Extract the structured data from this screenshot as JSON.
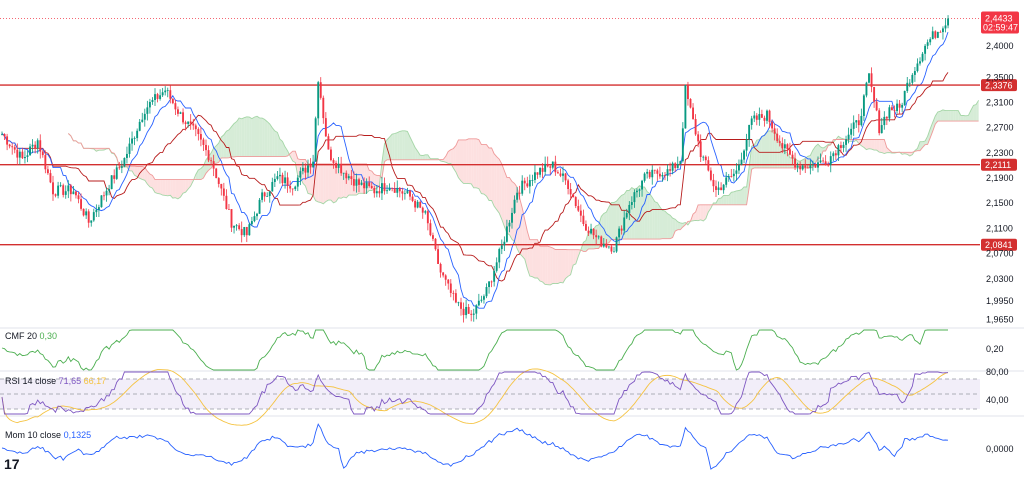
{
  "chart_data": {
    "type": "candlestick",
    "title": "",
    "price_axis": {
      "ticks": [
        "2,4000",
        "2,3500",
        "2,3100",
        "2,2700",
        "2,2300",
        "2,1900",
        "2,1500",
        "2,1100",
        "2,0700",
        "2,0300",
        "1,9950",
        "1,9650"
      ],
      "range": [
        1.955,
        2.46
      ]
    },
    "current": {
      "price": "2,4433",
      "countdown": "02:59:47"
    },
    "levels": [
      {
        "value": 2.3376,
        "label": "2,3376"
      },
      {
        "value": 2.2111,
        "label": "2,2111"
      },
      {
        "value": 2.0841,
        "label": "2,0841"
      }
    ],
    "anchors": [
      [
        0,
        2.26
      ],
      [
        8,
        2.22
      ],
      [
        14,
        2.25
      ],
      [
        20,
        2.17
      ],
      [
        28,
        2.17
      ],
      [
        34,
        2.12
      ],
      [
        42,
        2.18
      ],
      [
        48,
        2.22
      ],
      [
        56,
        2.3
      ],
      [
        64,
        2.33
      ],
      [
        70,
        2.29
      ],
      [
        76,
        2.26
      ],
      [
        82,
        2.22
      ],
      [
        90,
        2.12
      ],
      [
        96,
        2.1
      ],
      [
        102,
        2.16
      ],
      [
        108,
        2.19
      ],
      [
        114,
        2.18
      ],
      [
        122,
        2.22
      ],
      [
        124,
        2.35
      ],
      [
        128,
        2.23
      ],
      [
        134,
        2.2
      ],
      [
        140,
        2.18
      ],
      [
        146,
        2.17
      ],
      [
        152,
        2.18
      ],
      [
        160,
        2.16
      ],
      [
        166,
        2.13
      ],
      [
        172,
        2.04
      ],
      [
        178,
        1.99
      ],
      [
        184,
        1.97
      ],
      [
        190,
        2.01
      ],
      [
        196,
        2.08
      ],
      [
        202,
        2.17
      ],
      [
        210,
        2.2
      ],
      [
        216,
        2.21
      ],
      [
        222,
        2.18
      ],
      [
        228,
        2.12
      ],
      [
        234,
        2.09
      ],
      [
        240,
        2.08
      ],
      [
        246,
        2.15
      ],
      [
        252,
        2.19
      ],
      [
        258,
        2.2
      ],
      [
        262,
        2.2
      ],
      [
        266,
        2.22
      ],
      [
        268,
        2.33
      ],
      [
        274,
        2.23
      ],
      [
        280,
        2.17
      ],
      [
        288,
        2.2
      ],
      [
        294,
        2.28
      ],
      [
        300,
        2.29
      ],
      [
        306,
        2.24
      ],
      [
        312,
        2.21
      ],
      [
        318,
        2.21
      ],
      [
        324,
        2.22
      ],
      [
        330,
        2.25
      ],
      [
        336,
        2.28
      ],
      [
        340,
        2.35
      ],
      [
        344,
        2.27
      ],
      [
        348,
        2.3
      ],
      [
        352,
        2.3
      ],
      [
        356,
        2.35
      ],
      [
        362,
        2.4
      ],
      [
        366,
        2.42
      ],
      [
        371,
        2.4433
      ]
    ],
    "cmf": {
      "period": "20",
      "value": "0,30",
      "tick": "0,20"
    },
    "rsi": {
      "period": "14",
      "source": "close",
      "value": "71,65",
      "ma_value": "66,17",
      "ticks": [
        "80,00",
        "40,00"
      ]
    },
    "mom": {
      "period": "10",
      "source": "close",
      "value": "0,1325",
      "tick": "0,0000"
    },
    "labels": {
      "cmf_name": "CMF",
      "rsi_name": "RSI",
      "mom_name": "Mom",
      "logo": "17"
    },
    "colors": {
      "up": "#089981",
      "down": "#f23645",
      "level": "#d32f2f",
      "conversion": "#2962ff",
      "base": "#b71c1c",
      "span_a": "#a5d6a7",
      "span_b": "#ef9a9a",
      "cloud_bull": "#c8e6c9",
      "cloud_bear": "#fcd6d6",
      "cmf": "#4caf50",
      "rsi": "#7e57c2",
      "rsi_ma": "#f5c342",
      "mom": "#2962ff"
    }
  }
}
